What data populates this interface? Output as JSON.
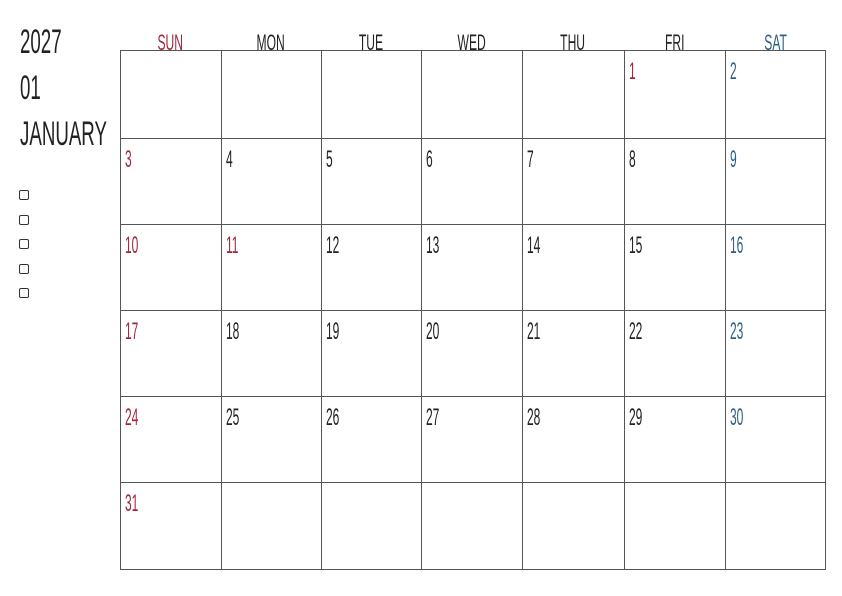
{
  "header": {
    "year": "2027",
    "month_num": "01",
    "month_name": "JANUARY"
  },
  "checkboxes": [
    false,
    false,
    false,
    false,
    false
  ],
  "colors": {
    "sunday": "#a0283c",
    "holiday": "#a0283c",
    "saturday": "#2e5f86",
    "weekday": "#222222"
  },
  "weekdays": [
    "SUN",
    "MON",
    "TUE",
    "WED",
    "THU",
    "FRI",
    "SAT"
  ],
  "weeks": [
    [
      "",
      "",
      "",
      "",
      "",
      "1",
      "2"
    ],
    [
      "3",
      "4",
      "5",
      "6",
      "7",
      "8",
      "9"
    ],
    [
      "10",
      "11",
      "12",
      "13",
      "14",
      "15",
      "16"
    ],
    [
      "17",
      "18",
      "19",
      "20",
      "21",
      "22",
      "23"
    ],
    [
      "24",
      "25",
      "26",
      "27",
      "28",
      "29",
      "30"
    ],
    [
      "31",
      "",
      "",
      "",
      "",
      "",
      ""
    ]
  ],
  "holidays": [
    "1",
    "10",
    "11"
  ]
}
